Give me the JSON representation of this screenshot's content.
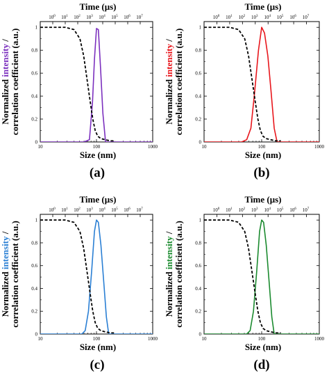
{
  "chart_data": [
    {
      "type": "line",
      "panel_label": "(a)",
      "color": "#7b2fbe",
      "xlabel": "Size (nm)",
      "ylabel_prefix": "Normalized ",
      "ylabel_highlight": "intensity",
      "ylabel_suffix": " /",
      "ylabel_line2": "correlation coefficient (a.u.)",
      "x2label": "Time (μs)",
      "x_scale": "log",
      "xlim": [
        10,
        1000
      ],
      "x_ticks": [
        "10",
        "100",
        "1000"
      ],
      "ylim": [
        0,
        1.05
      ],
      "y_ticks": [
        "0",
        "0.2",
        "0.4",
        "0.6",
        "0.8",
        "1"
      ],
      "x2_scale": "log",
      "x2lim": [
        0.1,
        100000000
      ],
      "x2_ticks": [
        {
          "base": "10",
          "exp": "0"
        },
        {
          "base": "10",
          "exp": "1"
        },
        {
          "base": "10",
          "exp": "2"
        },
        {
          "base": "10",
          "exp": "3"
        },
        {
          "base": "10",
          "exp": "4"
        },
        {
          "base": "10",
          "exp": "5"
        },
        {
          "base": "10",
          "exp": "6"
        },
        {
          "base": "10",
          "exp": "7"
        }
      ],
      "series": [
        {
          "style": "solid",
          "axis": "bottom",
          "x": [
            10,
            60,
            75,
            85,
            92,
            100,
            108,
            118,
            130,
            145,
            1000
          ],
          "y": [
            0,
            0,
            0.02,
            0.35,
            0.72,
            0.99,
            0.98,
            0.65,
            0.25,
            0,
            0
          ]
        },
        {
          "style": "dashed",
          "axis": "top",
          "x": [
            0.1,
            10,
            50,
            150,
            300,
            600,
            1000,
            1600,
            2500,
            4000,
            7000,
            15000,
            40000,
            100000
          ],
          "y": [
            1,
            1,
            0.98,
            0.9,
            0.75,
            0.52,
            0.35,
            0.2,
            0.1,
            0.05,
            0.03,
            0.02,
            0.01,
            0.01
          ]
        }
      ]
    },
    {
      "type": "line",
      "panel_label": "(b)",
      "color": "#e8151b",
      "xlabel": "Size (nm)",
      "ylabel_prefix": "Normalized ",
      "ylabel_highlight": "intensity",
      "ylabel_suffix": " /",
      "ylabel_line2": "correlation coefficient (a.u.)",
      "x2label": "Time (μs)",
      "x_scale": "log",
      "xlim": [
        10,
        1000
      ],
      "x_ticks": [
        "10",
        "100",
        "1000"
      ],
      "ylim": [
        0,
        1.05
      ],
      "y_ticks": [
        "0",
        "0.2",
        "0.4",
        "0.6",
        "0.8",
        "1"
      ],
      "x2_scale": "log",
      "x2lim": [
        0.1,
        100000000
      ],
      "x2_ticks": [
        {
          "base": "10",
          "exp": "0"
        },
        {
          "base": "10",
          "exp": "1"
        },
        {
          "base": "10",
          "exp": "2"
        },
        {
          "base": "10",
          "exp": "3"
        },
        {
          "base": "10",
          "exp": "4"
        },
        {
          "base": "10",
          "exp": "5"
        },
        {
          "base": "10",
          "exp": "6"
        },
        {
          "base": "10",
          "exp": "7"
        }
      ],
      "series": [
        {
          "style": "solid",
          "axis": "bottom",
          "x": [
            10,
            45,
            55,
            65,
            75,
            88,
            100,
            112,
            128,
            145,
            165,
            185,
            1000
          ],
          "y": [
            0,
            0,
            0.02,
            0.12,
            0.42,
            0.8,
            1.0,
            0.95,
            0.75,
            0.45,
            0.12,
            0,
            0
          ]
        },
        {
          "style": "dashed",
          "axis": "top",
          "x": [
            0.1,
            10,
            50,
            150,
            300,
            600,
            1000,
            1600,
            2500,
            4000,
            7000,
            15000,
            40000,
            100000
          ],
          "y": [
            1,
            1,
            0.98,
            0.9,
            0.75,
            0.52,
            0.35,
            0.2,
            0.1,
            0.05,
            0.03,
            0.02,
            0.01,
            0.01
          ]
        }
      ]
    },
    {
      "type": "line",
      "panel_label": "(c)",
      "color": "#2a7fd4",
      "xlabel": "Size (nm)",
      "ylabel_prefix": "Normalized ",
      "ylabel_highlight": "intensity",
      "ylabel_suffix": " /",
      "ylabel_line2": "correlation coefficient (a.u.)",
      "x2label": "Time (μs)",
      "x_scale": "log",
      "xlim": [
        10,
        1000
      ],
      "x_ticks": [
        "10",
        "100",
        "1000"
      ],
      "ylim": [
        0,
        1.05
      ],
      "y_ticks": [
        "0",
        "0.2",
        "0.4",
        "0.6",
        "0.8",
        "1"
      ],
      "x2_scale": "log",
      "x2lim": [
        0.1,
        100000000
      ],
      "x2_ticks": [
        {
          "base": "10",
          "exp": "0"
        },
        {
          "base": "10",
          "exp": "1"
        },
        {
          "base": "10",
          "exp": "2"
        },
        {
          "base": "10",
          "exp": "3"
        },
        {
          "base": "10",
          "exp": "4"
        },
        {
          "base": "10",
          "exp": "5"
        },
        {
          "base": "10",
          "exp": "6"
        },
        {
          "base": "10",
          "exp": "7"
        }
      ],
      "series": [
        {
          "style": "solid",
          "axis": "bottom",
          "x": [
            10,
            55,
            63,
            72,
            82,
            92,
            100,
            108,
            120,
            135,
            150,
            165,
            1000
          ],
          "y": [
            0,
            0,
            0.03,
            0.2,
            0.55,
            0.9,
            1.0,
            0.98,
            0.78,
            0.45,
            0.15,
            0,
            0
          ]
        },
        {
          "style": "dashed",
          "axis": "top",
          "x": [
            0.1,
            10,
            50,
            150,
            300,
            600,
            1000,
            1600,
            2500,
            4000,
            7000,
            15000,
            40000,
            100000
          ],
          "y": [
            1,
            1,
            0.98,
            0.9,
            0.75,
            0.52,
            0.35,
            0.2,
            0.1,
            0.05,
            0.03,
            0.02,
            0.01,
            0.01
          ]
        }
      ]
    },
    {
      "type": "line",
      "panel_label": "(d)",
      "color": "#1a8a2e",
      "xlabel": "Size (nm)",
      "ylabel_prefix": "Normalized ",
      "ylabel_highlight": "intensity",
      "ylabel_suffix": " /",
      "ylabel_line2": "correlation coefficient (a.u.)",
      "x2label": "Time (μs)",
      "x_scale": "log",
      "xlim": [
        10,
        1000
      ],
      "x_ticks": [
        "10",
        "100",
        "1000"
      ],
      "ylim": [
        0,
        1.05
      ],
      "y_ticks": [
        "0",
        "0.2",
        "0.4",
        "0.6",
        "0.8",
        "1"
      ],
      "x2_scale": "log",
      "x2lim": [
        0.1,
        100000000
      ],
      "x2_ticks": [
        {
          "base": "10",
          "exp": "0"
        },
        {
          "base": "10",
          "exp": "1"
        },
        {
          "base": "10",
          "exp": "2"
        },
        {
          "base": "10",
          "exp": "3"
        },
        {
          "base": "10",
          "exp": "4"
        },
        {
          "base": "10",
          "exp": "5"
        },
        {
          "base": "10",
          "exp": "6"
        },
        {
          "base": "10",
          "exp": "7"
        }
      ],
      "series": [
        {
          "style": "solid",
          "axis": "bottom",
          "x": [
            10,
            55,
            63,
            72,
            82,
            92,
            100,
            108,
            120,
            135,
            150,
            165,
            1000
          ],
          "y": [
            0,
            0,
            0.03,
            0.2,
            0.55,
            0.9,
            1.0,
            0.98,
            0.78,
            0.45,
            0.15,
            0,
            0
          ]
        },
        {
          "style": "dashed",
          "axis": "top",
          "x": [
            0.1,
            10,
            50,
            150,
            300,
            600,
            1000,
            1600,
            2500,
            4000,
            7000,
            15000,
            40000,
            100000
          ],
          "y": [
            1,
            1,
            0.98,
            0.9,
            0.75,
            0.52,
            0.35,
            0.2,
            0.1,
            0.05,
            0.03,
            0.02,
            0.01,
            0.01
          ]
        }
      ]
    }
  ]
}
